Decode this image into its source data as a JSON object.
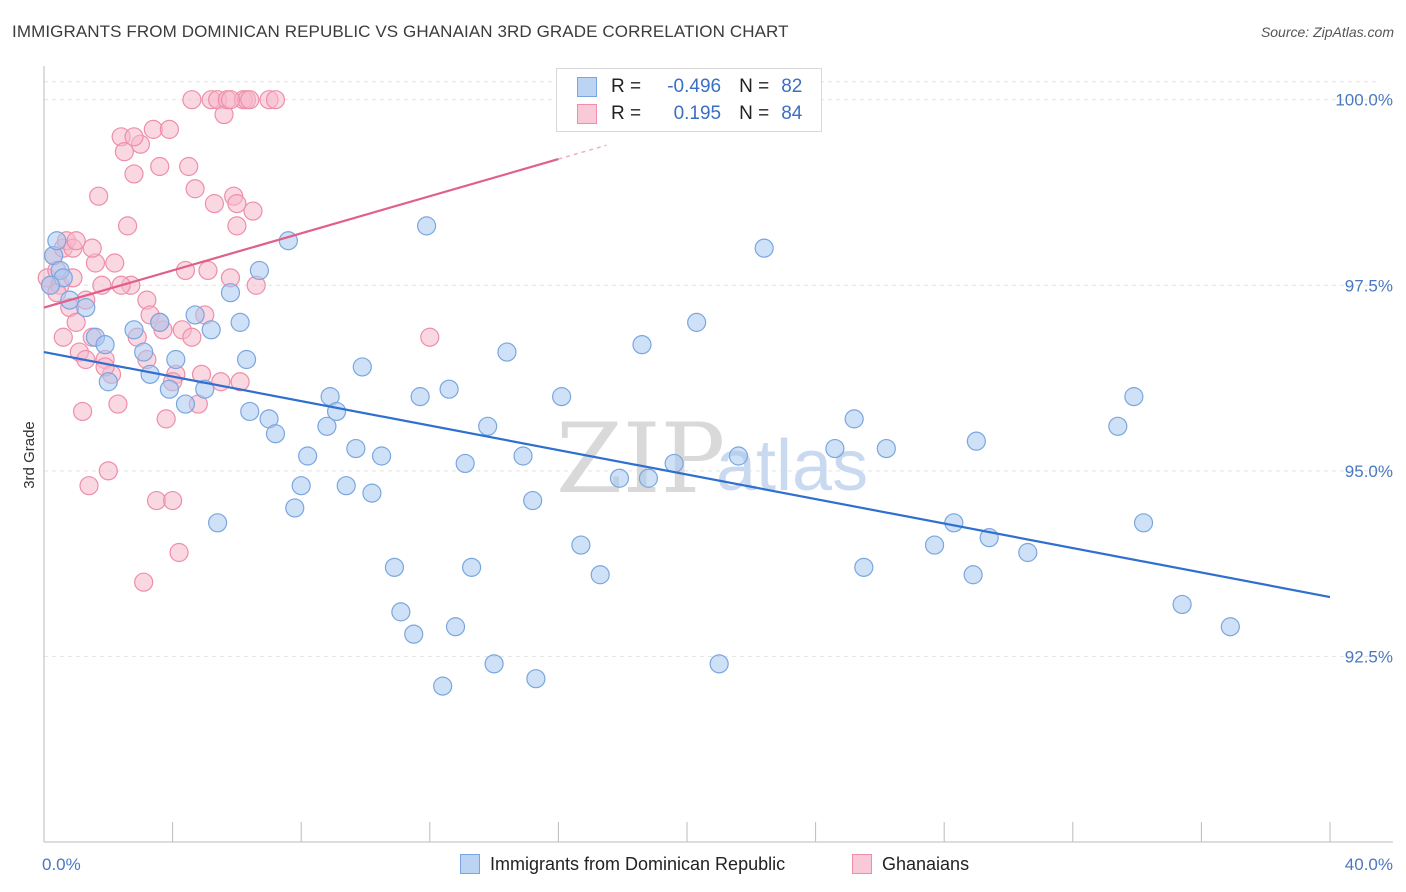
{
  "title": "IMMIGRANTS FROM DOMINICAN REPUBLIC VS GHANAIAN 3RD GRADE CORRELATION CHART",
  "source": "Source: ZipAtlas.com",
  "watermark": {
    "zip": "ZIP",
    "atlas": "atlas"
  },
  "legend_top": {
    "rows": [
      {
        "r_label": "R =",
        "r_value": "-0.496",
        "n_label": "N =",
        "n_value": "82"
      },
      {
        "r_label": "R =",
        "r_value": "0.195",
        "n_label": "N =",
        "n_value": "84"
      }
    ]
  },
  "legend_bottom": {
    "blue": "Immigrants from Dominican Republic",
    "pink": "Ghanaians"
  },
  "colors": {
    "blue_fill": "#a8c8f0",
    "blue_stroke": "#7aa6e0",
    "blue_line": "#2f6fcf",
    "pink_fill": "#f6b8cb",
    "pink_stroke": "#ee8eaa",
    "pink_line": "#e0608a"
  },
  "chart_data": {
    "type": "scatter",
    "title": "IMMIGRANTS FROM DOMINICAN REPUBLIC VS GHANAIAN 3RD GRADE CORRELATION CHART",
    "xlabel": "",
    "ylabel": "3rd Grade",
    "xlim": [
      0,
      40
    ],
    "ylim": [
      90.0,
      100.4
    ],
    "x_ticks": [
      "0.0%",
      "40.0%"
    ],
    "y_ticks": [
      {
        "value": 92.5,
        "label": "92.5%"
      },
      {
        "value": 95.0,
        "label": "95.0%"
      },
      {
        "value": 97.5,
        "label": "97.5%"
      },
      {
        "value": 100.0,
        "label": "100.0%"
      }
    ],
    "series": [
      {
        "name": "Immigrants from Dominican Republic",
        "trend": {
          "x": [
            0,
            40
          ],
          "y": [
            96.6,
            93.3
          ]
        },
        "points": [
          [
            0.3,
            97.9
          ],
          [
            0.4,
            98.1
          ],
          [
            0.5,
            97.7
          ],
          [
            0.6,
            97.6
          ],
          [
            0.8,
            97.3
          ],
          [
            1.3,
            97.2
          ],
          [
            1.6,
            96.8
          ],
          [
            1.9,
            96.7
          ],
          [
            2.0,
            96.2
          ],
          [
            2.8,
            96.9
          ],
          [
            3.1,
            96.6
          ],
          [
            3.3,
            96.3
          ],
          [
            3.6,
            97.0
          ],
          [
            3.9,
            96.1
          ],
          [
            4.1,
            96.5
          ],
          [
            4.4,
            95.9
          ],
          [
            4.7,
            97.1
          ],
          [
            5.0,
            96.1
          ],
          [
            5.2,
            96.9
          ],
          [
            5.4,
            94.3
          ],
          [
            5.8,
            97.4
          ],
          [
            6.1,
            97.0
          ],
          [
            6.3,
            96.5
          ],
          [
            6.4,
            95.8
          ],
          [
            6.7,
            97.7
          ],
          [
            7.0,
            95.7
          ],
          [
            7.2,
            95.5
          ],
          [
            7.6,
            98.1
          ],
          [
            7.8,
            94.5
          ],
          [
            8.0,
            94.8
          ],
          [
            8.2,
            95.2
          ],
          [
            8.8,
            95.6
          ],
          [
            8.9,
            96.0
          ],
          [
            9.1,
            95.8
          ],
          [
            9.4,
            94.8
          ],
          [
            9.7,
            95.3
          ],
          [
            9.9,
            96.4
          ],
          [
            10.2,
            94.7
          ],
          [
            10.5,
            95.2
          ],
          [
            10.9,
            93.7
          ],
          [
            11.1,
            93.1
          ],
          [
            11.5,
            92.8
          ],
          [
            11.7,
            96.0
          ],
          [
            11.9,
            98.3
          ],
          [
            12.4,
            92.1
          ],
          [
            12.6,
            96.1
          ],
          [
            12.8,
            92.9
          ],
          [
            13.1,
            95.1
          ],
          [
            13.3,
            93.7
          ],
          [
            13.8,
            95.6
          ],
          [
            14.0,
            92.4
          ],
          [
            14.4,
            96.6
          ],
          [
            14.9,
            95.2
          ],
          [
            15.2,
            94.6
          ],
          [
            15.3,
            92.2
          ],
          [
            16.1,
            96.0
          ],
          [
            16.7,
            94.0
          ],
          [
            17.3,
            93.6
          ],
          [
            17.9,
            94.9
          ],
          [
            18.6,
            96.7
          ],
          [
            18.8,
            94.9
          ],
          [
            19.6,
            95.1
          ],
          [
            20.3,
            97.0
          ],
          [
            21.0,
            92.4
          ],
          [
            21.6,
            95.2
          ],
          [
            22.4,
            98.0
          ],
          [
            24.6,
            95.3
          ],
          [
            25.2,
            95.7
          ],
          [
            25.5,
            93.7
          ],
          [
            26.2,
            95.3
          ],
          [
            27.7,
            94.0
          ],
          [
            28.3,
            94.3
          ],
          [
            28.9,
            93.6
          ],
          [
            29.0,
            95.4
          ],
          [
            29.4,
            94.1
          ],
          [
            30.6,
            93.9
          ],
          [
            33.4,
            95.6
          ],
          [
            33.9,
            96.0
          ],
          [
            34.2,
            94.3
          ],
          [
            35.4,
            93.2
          ],
          [
            36.9,
            92.9
          ],
          [
            0.2,
            97.5
          ]
        ]
      },
      {
        "name": "Ghanaians",
        "trend": {
          "x": [
            0,
            16.0
          ],
          "y": [
            97.2,
            99.2
          ]
        },
        "points": [
          [
            0.1,
            97.6
          ],
          [
            0.2,
            97.5
          ],
          [
            0.3,
            97.9
          ],
          [
            0.4,
            97.7
          ],
          [
            0.5,
            97.5
          ],
          [
            0.6,
            98.0
          ],
          [
            0.7,
            98.1
          ],
          [
            0.8,
            97.2
          ],
          [
            0.9,
            98.0
          ],
          [
            1.0,
            97.0
          ],
          [
            1.1,
            96.6
          ],
          [
            1.2,
            95.8
          ],
          [
            1.3,
            96.5
          ],
          [
            1.4,
            94.8
          ],
          [
            1.5,
            96.8
          ],
          [
            1.6,
            97.8
          ],
          [
            1.7,
            98.7
          ],
          [
            1.8,
            97.5
          ],
          [
            1.9,
            96.5
          ],
          [
            2.0,
            95.0
          ],
          [
            2.1,
            96.3
          ],
          [
            2.2,
            97.8
          ],
          [
            2.3,
            95.9
          ],
          [
            2.4,
            99.5
          ],
          [
            2.5,
            99.3
          ],
          [
            2.6,
            98.3
          ],
          [
            2.7,
            97.5
          ],
          [
            2.8,
            99.0
          ],
          [
            2.9,
            96.8
          ],
          [
            3.0,
            99.4
          ],
          [
            3.1,
            93.5
          ],
          [
            3.2,
            97.3
          ],
          [
            3.3,
            97.1
          ],
          [
            3.4,
            99.6
          ],
          [
            3.5,
            94.6
          ],
          [
            3.6,
            99.1
          ],
          [
            3.7,
            96.9
          ],
          [
            3.8,
            95.7
          ],
          [
            3.9,
            99.6
          ],
          [
            4.0,
            94.6
          ],
          [
            4.1,
            96.3
          ],
          [
            4.2,
            93.9
          ],
          [
            4.3,
            96.9
          ],
          [
            4.4,
            97.7
          ],
          [
            4.5,
            99.1
          ],
          [
            4.6,
            96.8
          ],
          [
            4.7,
            98.8
          ],
          [
            4.8,
            95.9
          ],
          [
            4.9,
            96.3
          ],
          [
            5.0,
            97.1
          ],
          [
            5.1,
            97.7
          ],
          [
            5.2,
            100.0
          ],
          [
            5.3,
            98.6
          ],
          [
            5.4,
            100.0
          ],
          [
            5.5,
            96.2
          ],
          [
            5.6,
            99.8
          ],
          [
            5.7,
            100.0
          ],
          [
            5.8,
            97.6
          ],
          [
            5.9,
            98.7
          ],
          [
            6.0,
            98.3
          ],
          [
            6.1,
            96.2
          ],
          [
            6.2,
            100.0
          ],
          [
            6.3,
            100.0
          ],
          [
            6.4,
            100.0
          ],
          [
            6.5,
            98.5
          ],
          [
            7.0,
            100.0
          ],
          [
            7.2,
            100.0
          ],
          [
            12.0,
            96.8
          ],
          [
            1.3,
            97.3
          ],
          [
            0.6,
            96.8
          ],
          [
            1.9,
            96.4
          ],
          [
            3.6,
            97.0
          ],
          [
            0.9,
            97.6
          ],
          [
            2.4,
            97.5
          ],
          [
            4.6,
            100.0
          ],
          [
            5.8,
            100.0
          ],
          [
            6.6,
            97.5
          ],
          [
            0.4,
            97.4
          ],
          [
            1.5,
            98.0
          ],
          [
            3.2,
            96.5
          ],
          [
            2.8,
            99.5
          ],
          [
            4.0,
            96.2
          ],
          [
            6.0,
            98.6
          ],
          [
            1.0,
            98.1
          ]
        ]
      }
    ],
    "legend_placement": "top-center",
    "grid": true
  }
}
